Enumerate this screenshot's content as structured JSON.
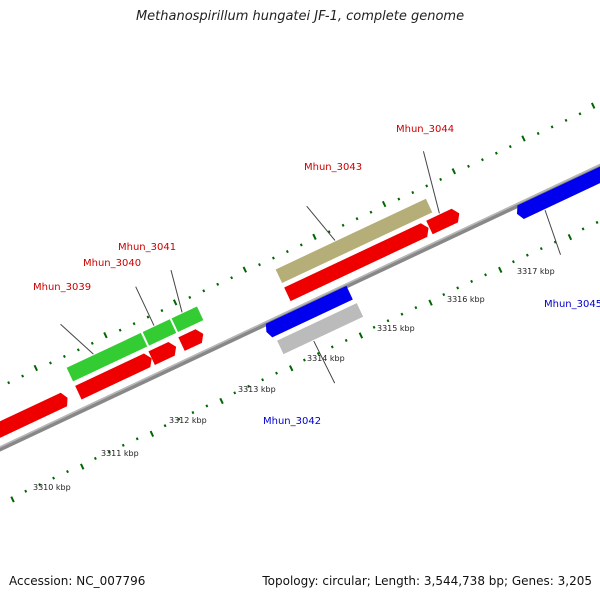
{
  "title": "Methanospirillum hungatei JF-1, complete genome",
  "footer": {
    "accession": "Accession: NC_007796",
    "summary": "Topology: circular; Length: 3,544,738 bp; Genes: 3,205"
  },
  "colors": {
    "forward_label": "#cc0000",
    "reverse_label": "#0000cc",
    "tick": "#006600",
    "backbone": "#888888"
  },
  "kbp_labels": [
    "3310 kbp",
    "3311 kbp",
    "3312 kbp",
    "3313 kbp",
    "3314 kbp",
    "3315 kbp",
    "3316 kbp",
    "3317 kbp"
  ],
  "genes": [
    {
      "name": "Mhun_3039",
      "strand": "forward"
    },
    {
      "name": "Mhun_3040",
      "strand": "forward"
    },
    {
      "name": "Mhun_3041",
      "strand": "forward"
    },
    {
      "name": "Mhun_3042",
      "strand": "reverse"
    },
    {
      "name": "Mhun_3043",
      "strand": "forward"
    },
    {
      "name": "Mhun_3044",
      "strand": "forward"
    },
    {
      "name": "Mhun_3045",
      "strand": "reverse"
    }
  ]
}
